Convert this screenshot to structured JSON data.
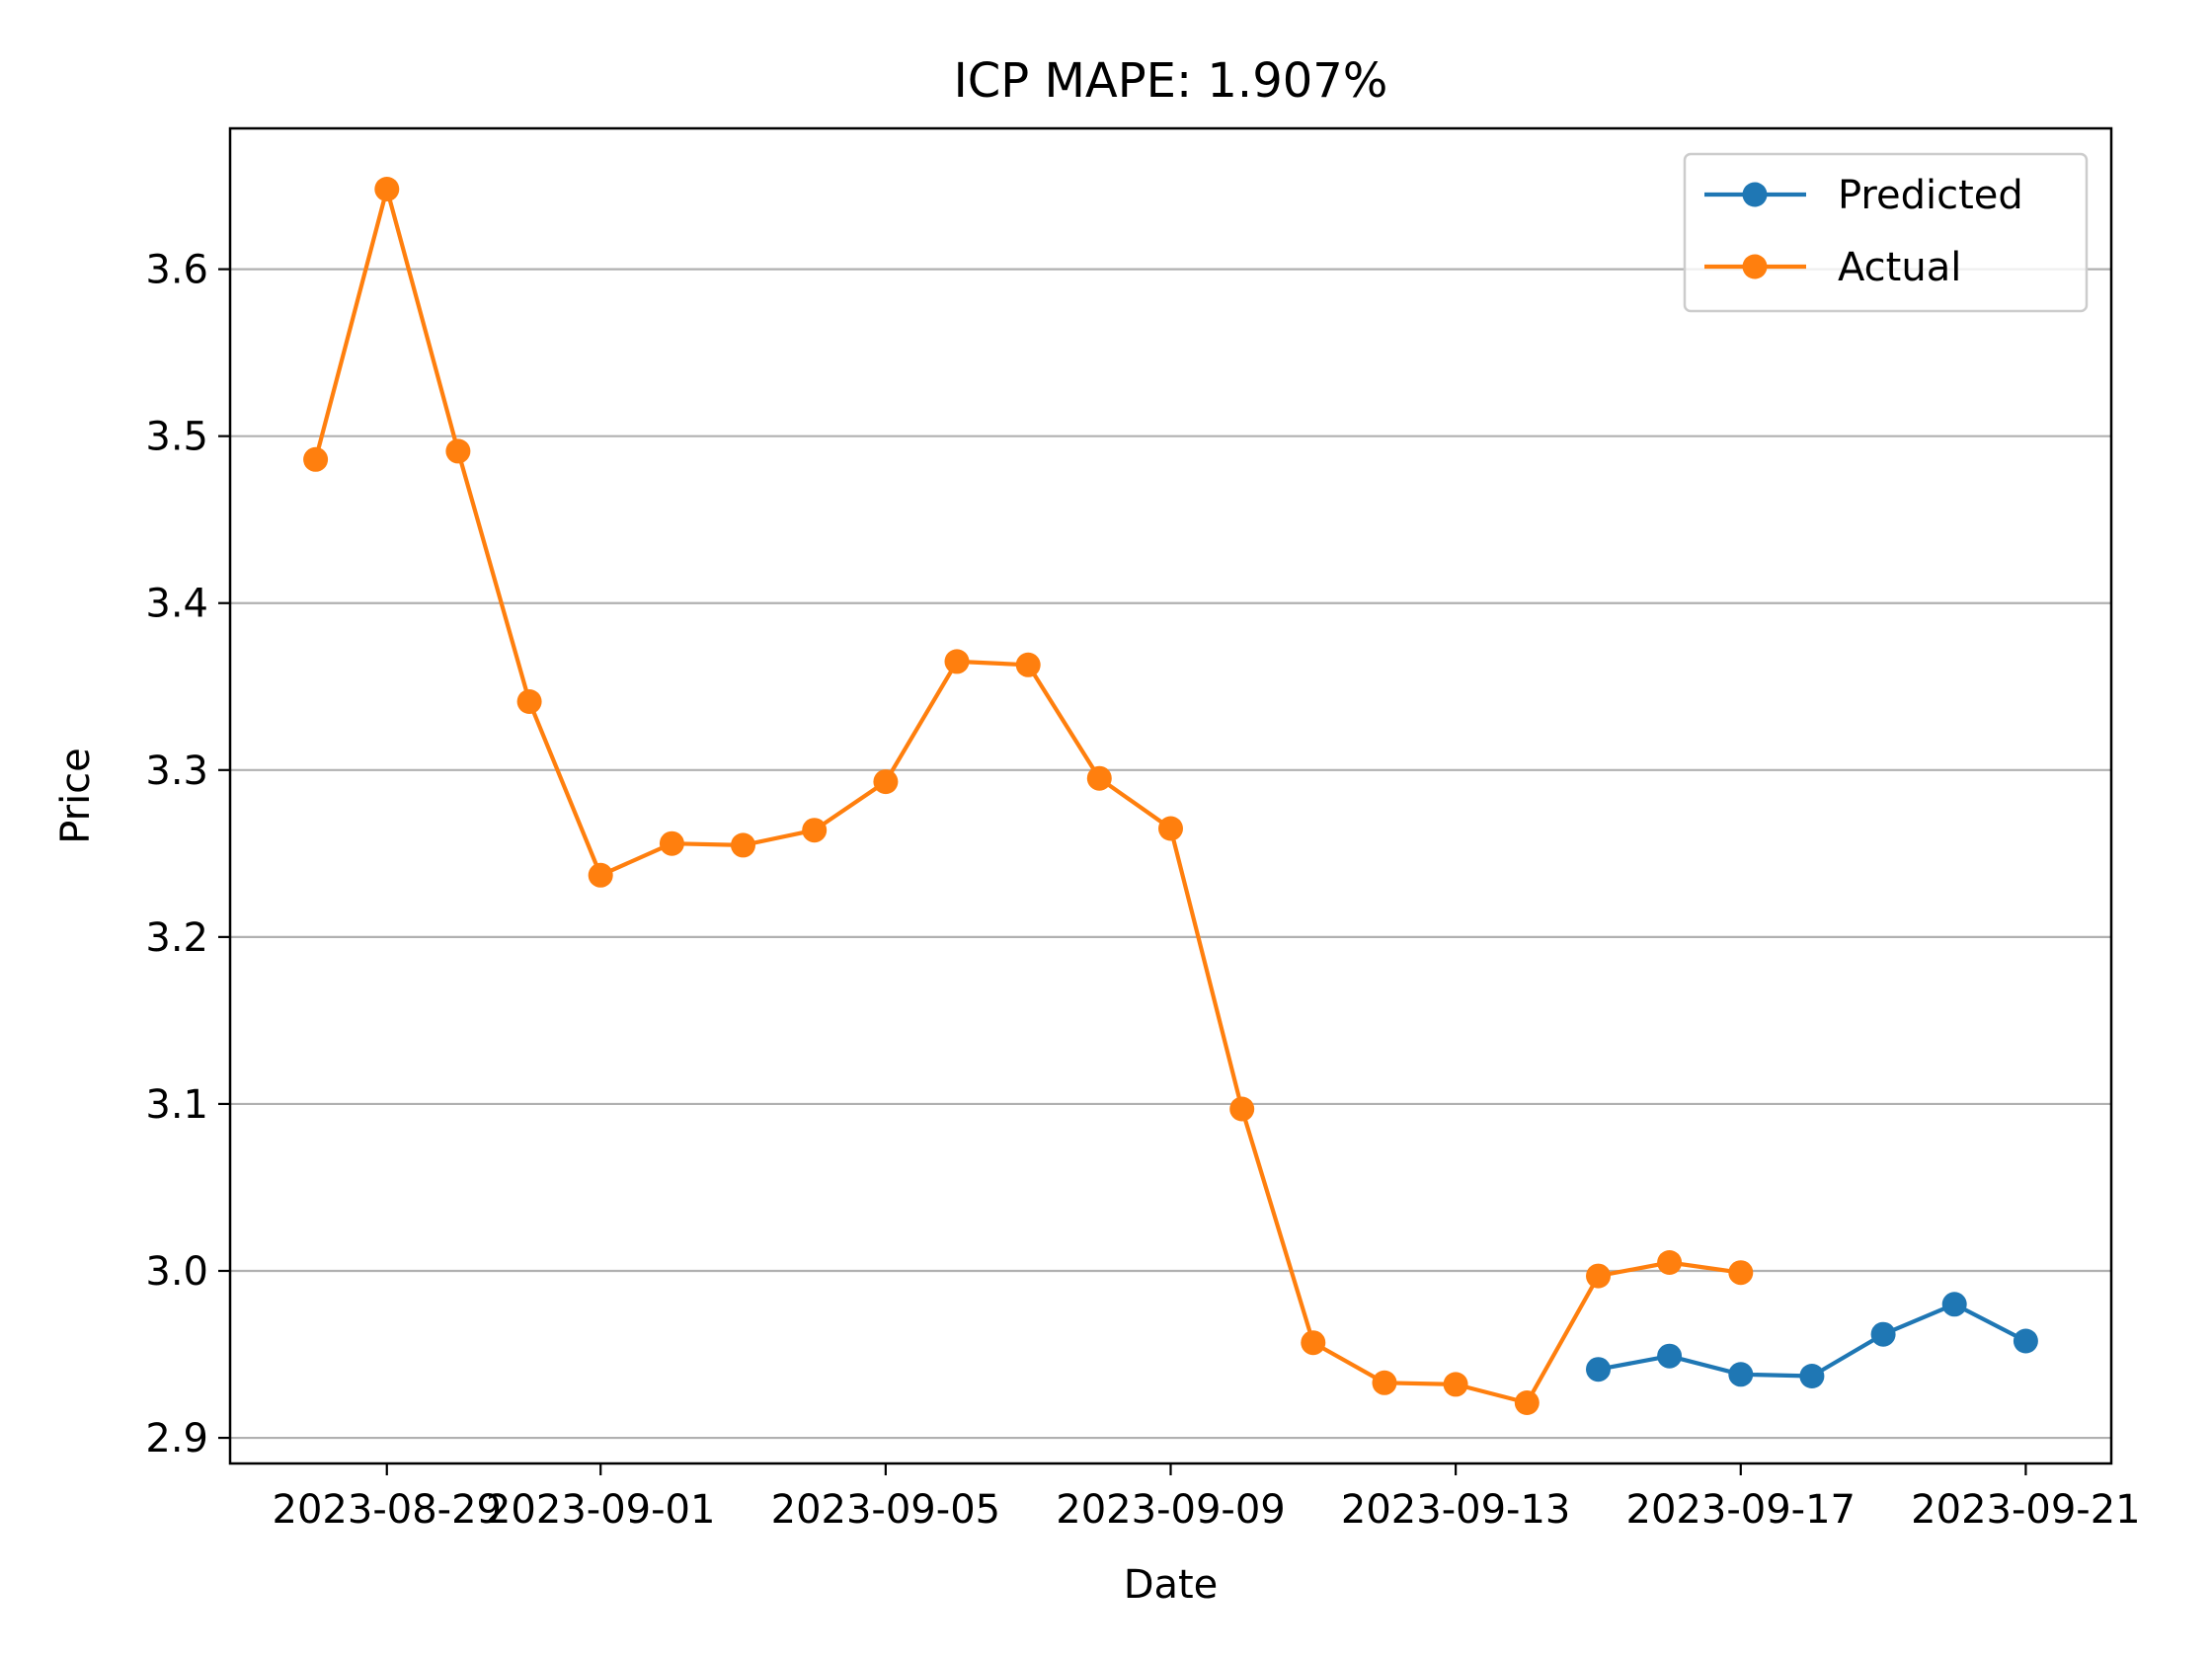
{
  "chart_data": {
    "type": "line",
    "title": "ICP MAPE: 1.907%",
    "xlabel": "Date",
    "ylabel": "Price",
    "xlim": [
      "2023-08-28",
      "2023-09-21"
    ],
    "ylim": [
      2.9,
      3.68
    ],
    "x_ticks": [
      "2023-08-29",
      "2023-09-01",
      "2023-09-05",
      "2023-09-09",
      "2023-09-13",
      "2023-09-17",
      "2023-09-21"
    ],
    "x_tick_labels": [
      "2023-08-29",
      "2023-09-01",
      "2023-09-05",
      "2023-09-09",
      "2023-09-13",
      "2023-09-17",
      "2023-09-21"
    ],
    "y_ticks": [
      2.9,
      3.0,
      3.1,
      3.2,
      3.3,
      3.4,
      3.5,
      3.6
    ],
    "y_tick_labels": [
      "2.9",
      "3.0",
      "3.1",
      "3.2",
      "3.3",
      "3.4",
      "3.5",
      "3.6"
    ],
    "grid": "horizontal",
    "legend_position": "top-right",
    "series": [
      {
        "name": "Predicted",
        "color": "#1f77b4",
        "x": [
          "2023-09-15",
          "2023-09-16",
          "2023-09-17",
          "2023-09-18",
          "2023-09-19",
          "2023-09-20",
          "2023-09-21"
        ],
        "values": [
          2.941,
          2.949,
          2.938,
          2.937,
          2.962,
          2.98,
          2.958
        ]
      },
      {
        "name": "Actual",
        "color": "#ff7f0e",
        "x": [
          "2023-08-28",
          "2023-08-29",
          "2023-08-30",
          "2023-08-31",
          "2023-09-01",
          "2023-09-02",
          "2023-09-03",
          "2023-09-04",
          "2023-09-05",
          "2023-09-06",
          "2023-09-07",
          "2023-09-08",
          "2023-09-09",
          "2023-09-10",
          "2023-09-11",
          "2023-09-12",
          "2023-09-13",
          "2023-09-14",
          "2023-09-15",
          "2023-09-16",
          "2023-09-17"
        ],
        "values": [
          3.486,
          3.648,
          3.491,
          3.341,
          3.237,
          3.256,
          3.255,
          3.264,
          3.293,
          3.365,
          3.363,
          3.295,
          3.265,
          3.097,
          2.957,
          2.933,
          2.932,
          2.921,
          2.997,
          3.005,
          2.999
        ]
      }
    ]
  }
}
